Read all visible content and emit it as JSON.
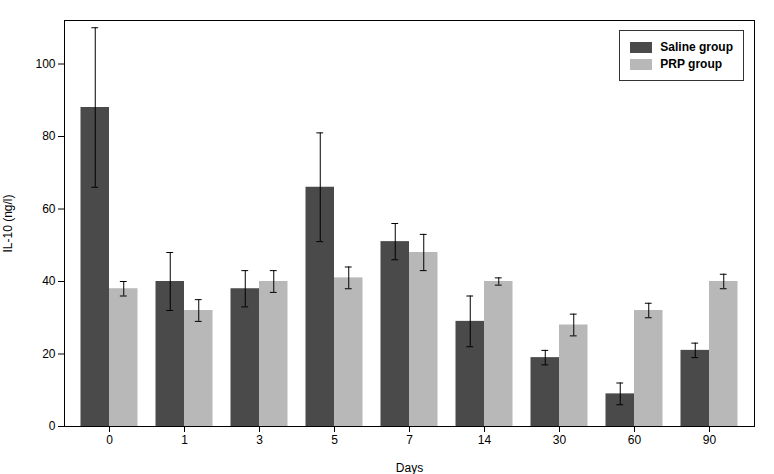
{
  "chart_data": {
    "type": "bar",
    "xlabel": "Days",
    "ylabel": "IL-10 (ng/l)",
    "categories": [
      "0",
      "1",
      "3",
      "5",
      "7",
      "14",
      "30",
      "60",
      "90"
    ],
    "series": [
      {
        "name": "Saline group",
        "color": "#4a4a4a",
        "values": [
          88,
          40,
          38,
          66,
          51,
          29,
          19,
          9,
          21
        ],
        "errors": [
          22,
          8,
          5,
          15,
          5,
          7,
          2,
          3,
          2
        ]
      },
      {
        "name": "PRP group",
        "color": "#b8b8b8",
        "values": [
          38,
          32,
          40,
          41,
          48,
          40,
          28,
          32,
          40
        ],
        "errors": [
          2,
          3,
          3,
          3,
          5,
          1,
          3,
          2,
          2
        ]
      }
    ],
    "ylim": [
      0,
      112
    ],
    "yticks": [
      0,
      20,
      40,
      60,
      80,
      100
    ],
    "grid": false,
    "legend": "upper right"
  }
}
